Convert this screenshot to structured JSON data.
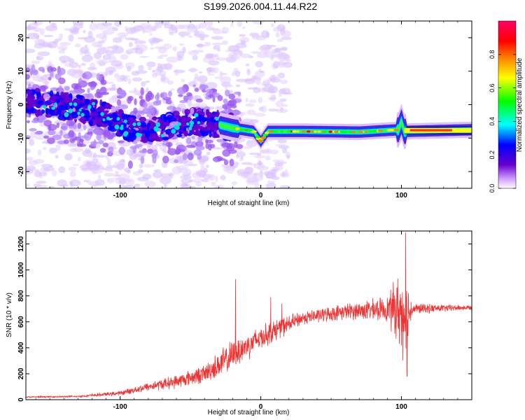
{
  "title": "S199.2026.004.11.44.R22",
  "chart_data": [
    {
      "type": "heatmap",
      "name": "spectrogram",
      "xlabel": "Height of straight line (km)",
      "ylabel": "Frequency (Hz)",
      "xlim": [
        -167,
        150
      ],
      "ylim": [
        -25,
        25
      ],
      "xticks": [
        -100,
        0,
        100
      ],
      "yticks": [
        -20,
        -10,
        0,
        10,
        20
      ],
      "ridge": [
        {
          "x": -167,
          "y": 1
        },
        {
          "x": -150,
          "y": 0
        },
        {
          "x": -130,
          "y": -1
        },
        {
          "x": -110,
          "y": -3
        },
        {
          "x": -95,
          "y": -7
        },
        {
          "x": -70,
          "y": -7
        },
        {
          "x": -50,
          "y": -5
        },
        {
          "x": -30,
          "y": -6
        },
        {
          "x": -20,
          "y": -7
        },
        {
          "x": -5,
          "y": -8
        },
        {
          "x": 0,
          "y": -11
        },
        {
          "x": 5,
          "y": -8
        },
        {
          "x": 30,
          "y": -8
        },
        {
          "x": 70,
          "y": -8.2
        },
        {
          "x": 98,
          "y": -7.5
        },
        {
          "x": 100,
          "y": -5
        },
        {
          "x": 102,
          "y": -8
        },
        {
          "x": 150,
          "y": -7.5
        }
      ],
      "colorbar": {
        "label": "Normalized spectral amplitude",
        "ticks": [
          "0.0",
          "0.2",
          "0.4",
          "0.6",
          "0.8"
        ],
        "range": [
          0,
          1
        ],
        "colors": [
          "#ffffff",
          "#cc99ff",
          "#6600cc",
          "#0000ff",
          "#00ffff",
          "#00ff00",
          "#ffff00",
          "#ff8000",
          "#ff0000",
          "#ff0066"
        ]
      }
    },
    {
      "type": "line",
      "name": "snr",
      "xlabel": "Height of straight line (km)",
      "ylabel": "SNR (10 * v/v)",
      "xlim": [
        -167,
        150
      ],
      "ylim": [
        0,
        1300
      ],
      "xticks": [
        -100,
        0,
        100
      ],
      "yticks": [
        0,
        200,
        400,
        600,
        800,
        1000,
        1200
      ],
      "color": "#ee3333",
      "envelope": [
        {
          "x": -167,
          "y": 20,
          "noise": 6
        },
        {
          "x": -130,
          "y": 25,
          "noise": 8
        },
        {
          "x": -100,
          "y": 50,
          "noise": 20
        },
        {
          "x": -80,
          "y": 100,
          "noise": 40
        },
        {
          "x": -60,
          "y": 140,
          "noise": 60
        },
        {
          "x": -40,
          "y": 200,
          "noise": 80
        },
        {
          "x": -25,
          "y": 300,
          "noise": 140
        },
        {
          "x": -15,
          "y": 380,
          "noise": 130
        },
        {
          "x": 0,
          "y": 480,
          "noise": 110
        },
        {
          "x": 15,
          "y": 560,
          "noise": 90
        },
        {
          "x": 30,
          "y": 630,
          "noise": 60
        },
        {
          "x": 60,
          "y": 680,
          "noise": 70
        },
        {
          "x": 90,
          "y": 700,
          "noise": 110
        },
        {
          "x": 95,
          "y": 700,
          "noise": 260
        },
        {
          "x": 102,
          "y": 660,
          "noise": 400
        },
        {
          "x": 108,
          "y": 700,
          "noise": 50
        },
        {
          "x": 150,
          "y": 710,
          "noise": 20
        }
      ],
      "spikes": [
        {
          "x": 103,
          "y": 1290
        },
        {
          "x": 104,
          "y": 180
        },
        {
          "x": -18,
          "y": 930
        },
        {
          "x": 7,
          "y": 790
        },
        {
          "x": 15,
          "y": 740
        }
      ]
    }
  ]
}
